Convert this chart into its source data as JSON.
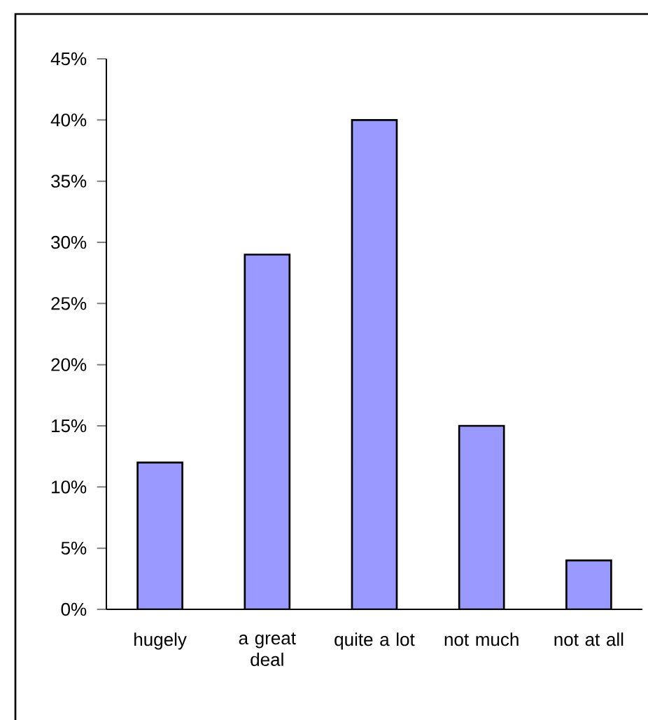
{
  "chart_data": {
    "type": "bar",
    "categories": [
      "hugely",
      "a great deal",
      "quite a lot",
      "not much",
      "not at all"
    ],
    "values": [
      12,
      29,
      40,
      15,
      4
    ],
    "color": "#9999ff",
    "ylim": [
      0,
      45
    ],
    "yticks": [
      {
        "value": 0,
        "label": "0%"
      },
      {
        "value": 5,
        "label": "5%"
      },
      {
        "value": 10,
        "label": "10%"
      },
      {
        "value": 15,
        "label": "15%"
      },
      {
        "value": 20,
        "label": "20%"
      },
      {
        "value": 25,
        "label": "25%"
      },
      {
        "value": 30,
        "label": "30%"
      },
      {
        "value": 35,
        "label": "35%"
      },
      {
        "value": 40,
        "label": "40%"
      },
      {
        "value": 45,
        "label": "45%"
      }
    ],
    "grid": false
  }
}
